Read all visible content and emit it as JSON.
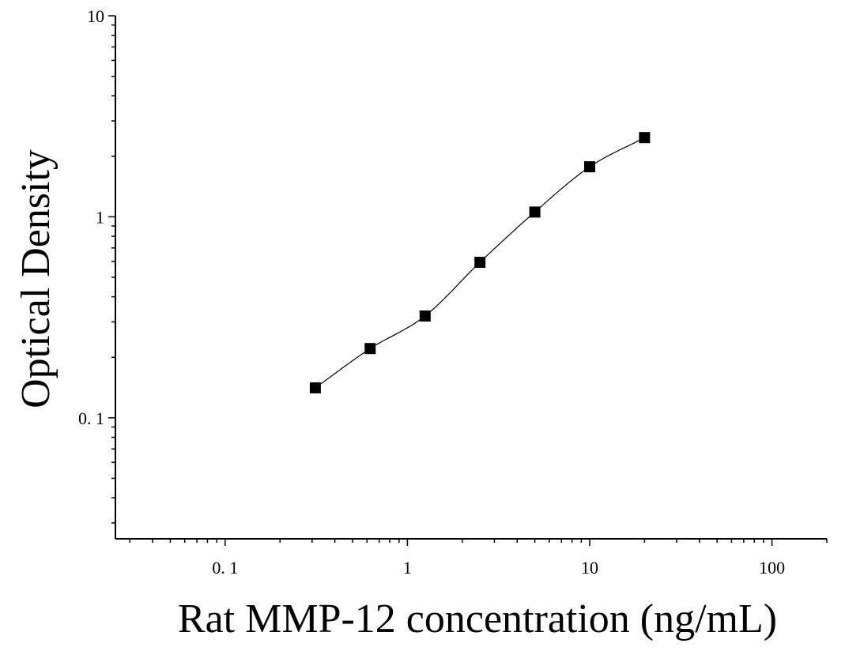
{
  "chart_data": {
    "type": "scatter",
    "title": "",
    "xlabel": "Rat MMP-12 concentration (ng/mL)",
    "ylabel": "Optical Density",
    "x_scale": "log",
    "y_scale": "log",
    "xlim": [
      0.025,
      200
    ],
    "ylim": [
      0.025,
      10
    ],
    "x_tick_labels": [
      {
        "value": 0.1,
        "label": "0. 1"
      },
      {
        "value": 1,
        "label": "1"
      },
      {
        "value": 10,
        "label": "10"
      },
      {
        "value": 100,
        "label": "100"
      }
    ],
    "y_tick_labels": [
      {
        "value": 0.1,
        "label": "0. 1"
      },
      {
        "value": 1,
        "label": "1"
      },
      {
        "value": 10,
        "label": "10"
      }
    ],
    "grid": false,
    "legend": "none",
    "series": [
      {
        "x": [
          0.3125,
          0.625,
          1.25,
          2.5,
          5,
          10,
          20
        ],
        "y": [
          0.141,
          0.221,
          0.321,
          0.594,
          1.056,
          1.773,
          2.476
        ],
        "marker": "square",
        "color": "#000000",
        "fit_line": "4PL curve"
      }
    ]
  }
}
